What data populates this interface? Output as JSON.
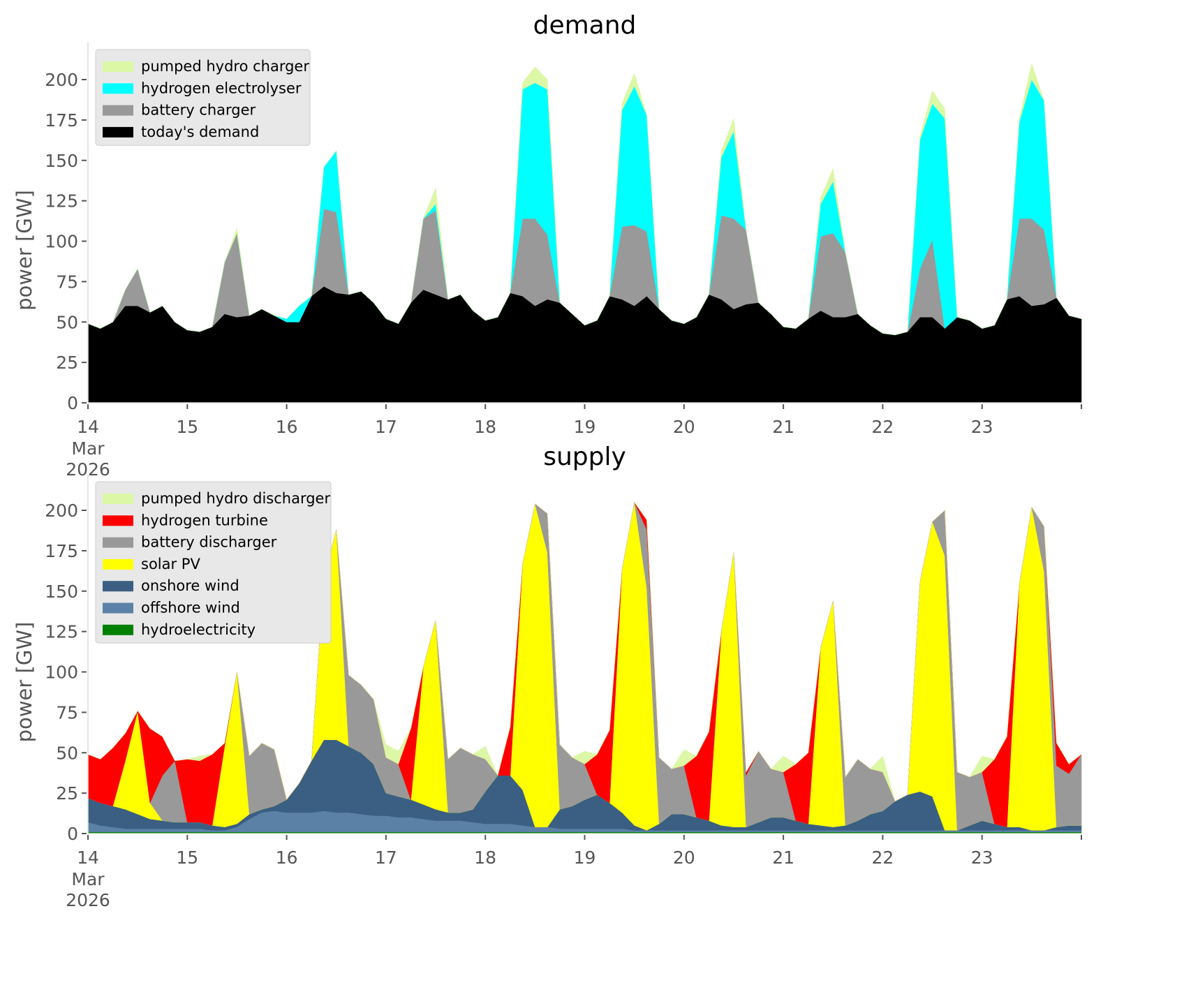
{
  "chart_data": [
    {
      "type": "area",
      "stacked": true,
      "title": "demand",
      "xlabel": "",
      "ylabel": "power [GW]",
      "ylim": [
        0,
        220
      ],
      "yticks": [
        0,
        25,
        50,
        75,
        100,
        125,
        150,
        175,
        200
      ],
      "xlim_days": [
        14,
        24
      ],
      "xticks": [
        {
          "day": 14,
          "label": "14",
          "sub": [
            "Mar",
            "2026"
          ]
        },
        {
          "day": 15,
          "label": "15"
        },
        {
          "day": 16,
          "label": "16"
        },
        {
          "day": 17,
          "label": "17"
        },
        {
          "day": 18,
          "label": "18"
        },
        {
          "day": 19,
          "label": "19"
        },
        {
          "day": 20,
          "label": "20"
        },
        {
          "day": 21,
          "label": "21"
        },
        {
          "day": 22,
          "label": "22"
        },
        {
          "day": 23,
          "label": "23"
        },
        {
          "day": 24,
          "label": ""
        }
      ],
      "grid": false,
      "legend_position": "top-left",
      "time_step_hours": 3,
      "start": "2026-03-14T00:00",
      "series": [
        {
          "name": "today's demand",
          "color": "#000000",
          "values": [
            49,
            46,
            50,
            60,
            60,
            56,
            60,
            50,
            45,
            44,
            47,
            55,
            53,
            54,
            58,
            54,
            50,
            50,
            66,
            72,
            68,
            67,
            69,
            62,
            52,
            49,
            62,
            70,
            67,
            64,
            67,
            57,
            51,
            53,
            68,
            66,
            60,
            64,
            62,
            55,
            48,
            51,
            66,
            64,
            60,
            66,
            58,
            51,
            49,
            53,
            67,
            64,
            58,
            61,
            62,
            55,
            47,
            46,
            52,
            57,
            53,
            53,
            55,
            48,
            43,
            42,
            44,
            53,
            53,
            46,
            53,
            51,
            46,
            48,
            64,
            66,
            60,
            61,
            65,
            54,
            52
          ]
        },
        {
          "name": "battery charger",
          "color": "#999999",
          "values": [
            0,
            0,
            0,
            10,
            23,
            0,
            0,
            0,
            0,
            0,
            0,
            32,
            52,
            0,
            0,
            0,
            0,
            0,
            0,
            48,
            50,
            0,
            0,
            0,
            0,
            0,
            0,
            44,
            52,
            0,
            0,
            0,
            0,
            0,
            0,
            48,
            54,
            40,
            0,
            0,
            0,
            0,
            0,
            45,
            50,
            40,
            0,
            0,
            0,
            0,
            0,
            52,
            56,
            46,
            0,
            0,
            0,
            0,
            0,
            46,
            52,
            40,
            0,
            0,
            0,
            0,
            0,
            30,
            48,
            0,
            0,
            0,
            0,
            0,
            0,
            48,
            54,
            46,
            0,
            0,
            0
          ]
        },
        {
          "name": "hydrogen electrolyser",
          "color": "#00ffff",
          "values": [
            0,
            0,
            0,
            0,
            0,
            0,
            0,
            0,
            0,
            0,
            0,
            0,
            0,
            0,
            0,
            0,
            2,
            10,
            0,
            26,
            38,
            0,
            0,
            0,
            0,
            0,
            0,
            0,
            4,
            0,
            0,
            0,
            0,
            0,
            0,
            80,
            84,
            90,
            0,
            0,
            0,
            0,
            0,
            72,
            86,
            72,
            0,
            0,
            0,
            0,
            0,
            36,
            54,
            0,
            0,
            0,
            0,
            0,
            0,
            20,
            32,
            0,
            0,
            0,
            0,
            0,
            0,
            80,
            84,
            130,
            0,
            0,
            0,
            0,
            0,
            60,
            86,
            80,
            0,
            0,
            0
          ]
        },
        {
          "name": "pumped hydro charger",
          "color": "#dcf7a5",
          "values": [
            0,
            0,
            0,
            0,
            0,
            0,
            0,
            0,
            0,
            0,
            0,
            0,
            3,
            0,
            0,
            0,
            0,
            0,
            0,
            0,
            0,
            0,
            0,
            0,
            0,
            0,
            0,
            0,
            10,
            0,
            0,
            0,
            0,
            0,
            0,
            4,
            10,
            6,
            0,
            0,
            0,
            0,
            0,
            4,
            8,
            0,
            0,
            0,
            0,
            0,
            0,
            4,
            8,
            0,
            0,
            0,
            0,
            0,
            0,
            4,
            8,
            0,
            0,
            0,
            0,
            0,
            0,
            2,
            8,
            6,
            0,
            0,
            0,
            0,
            0,
            2,
            10,
            0,
            0,
            0,
            0
          ]
        }
      ]
    },
    {
      "type": "area",
      "stacked": true,
      "title": "supply",
      "xlabel": "",
      "ylabel": "power [GW]",
      "ylim": [
        0,
        220
      ],
      "yticks": [
        0,
        25,
        50,
        75,
        100,
        125,
        150,
        175,
        200
      ],
      "xlim_days": [
        14,
        24
      ],
      "xticks": [
        {
          "day": 14,
          "label": "14",
          "sub": [
            "Mar",
            "2026"
          ]
        },
        {
          "day": 15,
          "label": "15"
        },
        {
          "day": 16,
          "label": "16"
        },
        {
          "day": 17,
          "label": "17"
        },
        {
          "day": 18,
          "label": "18"
        },
        {
          "day": 19,
          "label": "19"
        },
        {
          "day": 20,
          "label": "20"
        },
        {
          "day": 21,
          "label": "21"
        },
        {
          "day": 22,
          "label": "22"
        },
        {
          "day": 23,
          "label": "23"
        },
        {
          "day": 24,
          "label": ""
        }
      ],
      "grid": false,
      "legend_position": "top-left",
      "time_step_hours": 3,
      "start": "2026-03-14T00:00",
      "series": [
        {
          "name": "hydroelectricity",
          "color": "#008000",
          "values": [
            1,
            1,
            1,
            1,
            1,
            1,
            1,
            1,
            1,
            1,
            1,
            1,
            1,
            1,
            1,
            1,
            1,
            1,
            1,
            1,
            1,
            1,
            1,
            1,
            1,
            1,
            1,
            1,
            1,
            1,
            1,
            1,
            1,
            1,
            1,
            1,
            1,
            1,
            1,
            1,
            1,
            1,
            1,
            1,
            1,
            1,
            1,
            1,
            1,
            1,
            1,
            1,
            1,
            1,
            1,
            1,
            1,
            1,
            1,
            1,
            1,
            1,
            1,
            1,
            1,
            1,
            1,
            1,
            1,
            1,
            1,
            1,
            1,
            1,
            1,
            1,
            1,
            1,
            1,
            1,
            1
          ]
        },
        {
          "name": "offshore wind",
          "color": "#5b82a6",
          "values": [
            6,
            4,
            3,
            2,
            2,
            2,
            2,
            2,
            2,
            2,
            1,
            1,
            3,
            8,
            12,
            13,
            12,
            12,
            12,
            13,
            12,
            12,
            11,
            10,
            10,
            9,
            9,
            8,
            7,
            7,
            7,
            6,
            5,
            5,
            5,
            4,
            3,
            3,
            2,
            2,
            2,
            2,
            2,
            2,
            1,
            1,
            1,
            1,
            1,
            1,
            1,
            1,
            1,
            1,
            1,
            1,
            1,
            1,
            1,
            1,
            1,
            1,
            1,
            1,
            1,
            1,
            1,
            1,
            1,
            1,
            1,
            1,
            1,
            1,
            1,
            1,
            1,
            1,
            1,
            1,
            1
          ]
        },
        {
          "name": "onshore wind",
          "color": "#3a5f82",
          "values": [
            15,
            14,
            13,
            12,
            9,
            6,
            5,
            4,
            4,
            4,
            3,
            2,
            2,
            3,
            2,
            3,
            8,
            18,
            32,
            44,
            45,
            41,
            38,
            32,
            14,
            13,
            11,
            9,
            7,
            5,
            5,
            8,
            20,
            30,
            30,
            22,
            0,
            0,
            12,
            14,
            18,
            21,
            16,
            10,
            3,
            0,
            4,
            10,
            10,
            8,
            6,
            3,
            2,
            2,
            5,
            8,
            8,
            6,
            4,
            3,
            2,
            3,
            6,
            10,
            12,
            18,
            22,
            24,
            21,
            0,
            0,
            3,
            6,
            4,
            2,
            2,
            0,
            0,
            2,
            3,
            3
          ]
        },
        {
          "name": "solar PV",
          "color": "#ffff00",
          "values": [
            0,
            0,
            0,
            30,
            64,
            10,
            0,
            0,
            0,
            0,
            0,
            50,
            94,
            0,
            0,
            0,
            0,
            0,
            0,
            100,
            130,
            0,
            0,
            0,
            0,
            0,
            0,
            85,
            117,
            0,
            0,
            0,
            0,
            0,
            0,
            140,
            200,
            170,
            0,
            0,
            0,
            0,
            0,
            150,
            200,
            150,
            0,
            0,
            0,
            0,
            0,
            120,
            170,
            0,
            0,
            0,
            0,
            0,
            0,
            110,
            140,
            0,
            0,
            0,
            0,
            0,
            0,
            130,
            170,
            170,
            0,
            0,
            0,
            0,
            0,
            150,
            200,
            160,
            0,
            0,
            0
          ]
        },
        {
          "name": "battery discharger",
          "color": "#999999",
          "values": [
            0,
            0,
            0,
            0,
            0,
            0,
            28,
            38,
            0,
            0,
            0,
            0,
            0,
            36,
            41,
            35,
            0,
            0,
            0,
            0,
            0,
            44,
            42,
            40,
            22,
            20,
            0,
            0,
            0,
            33,
            40,
            34,
            20,
            0,
            0,
            0,
            0,
            24,
            40,
            30,
            22,
            0,
            0,
            0,
            0,
            36,
            41,
            28,
            30,
            0,
            0,
            0,
            0,
            32,
            44,
            30,
            28,
            0,
            0,
            0,
            0,
            30,
            38,
            28,
            24,
            0,
            0,
            0,
            0,
            28,
            36,
            30,
            30,
            0,
            0,
            0,
            0,
            28,
            38,
            32,
            44
          ]
        },
        {
          "name": "hydrogen turbine",
          "color": "#ff0000",
          "values": [
            27,
            27,
            36,
            17,
            0,
            46,
            24,
            0,
            39,
            38,
            44,
            2,
            0,
            0,
            0,
            0,
            0,
            0,
            0,
            0,
            0,
            0,
            0,
            0,
            0,
            0,
            44,
            0,
            0,
            0,
            0,
            0,
            0,
            0,
            30,
            0,
            0,
            0,
            0,
            0,
            0,
            25,
            45,
            0,
            0,
            6,
            0,
            0,
            0,
            38,
            55,
            0,
            0,
            2,
            0,
            0,
            0,
            35,
            44,
            0,
            0,
            0,
            0,
            0,
            0,
            0,
            0,
            0,
            0,
            0,
            0,
            0,
            0,
            40,
            56,
            0,
            0,
            0,
            14,
            6,
            0
          ]
        },
        {
          "name": "pumped hydro discharger",
          "color": "#dcf7a5",
          "values": [
            0,
            0,
            0,
            0,
            0,
            0,
            0,
            0,
            0,
            3,
            0,
            0,
            0,
            0,
            0,
            0,
            0,
            0,
            0,
            0,
            0,
            0,
            0,
            0,
            8,
            8,
            0,
            0,
            0,
            0,
            0,
            0,
            8,
            0,
            0,
            0,
            0,
            0,
            0,
            0,
            8,
            0,
            0,
            0,
            0,
            0,
            0,
            0,
            10,
            0,
            0,
            0,
            0,
            0,
            0,
            0,
            10,
            0,
            0,
            0,
            0,
            0,
            0,
            0,
            10,
            0,
            0,
            0,
            0,
            0,
            0,
            0,
            10,
            0,
            0,
            0,
            0,
            0,
            0,
            0,
            0
          ]
        }
      ]
    }
  ],
  "legends": {
    "demand": [
      "pumped hydro charger",
      "hydrogen electrolyser",
      "battery charger",
      "today's demand"
    ],
    "supply": [
      "pumped hydro discharger",
      "hydrogen turbine",
      "battery discharger",
      "solar PV",
      "onshore wind",
      "offshore wind",
      "hydroelectricity"
    ]
  }
}
